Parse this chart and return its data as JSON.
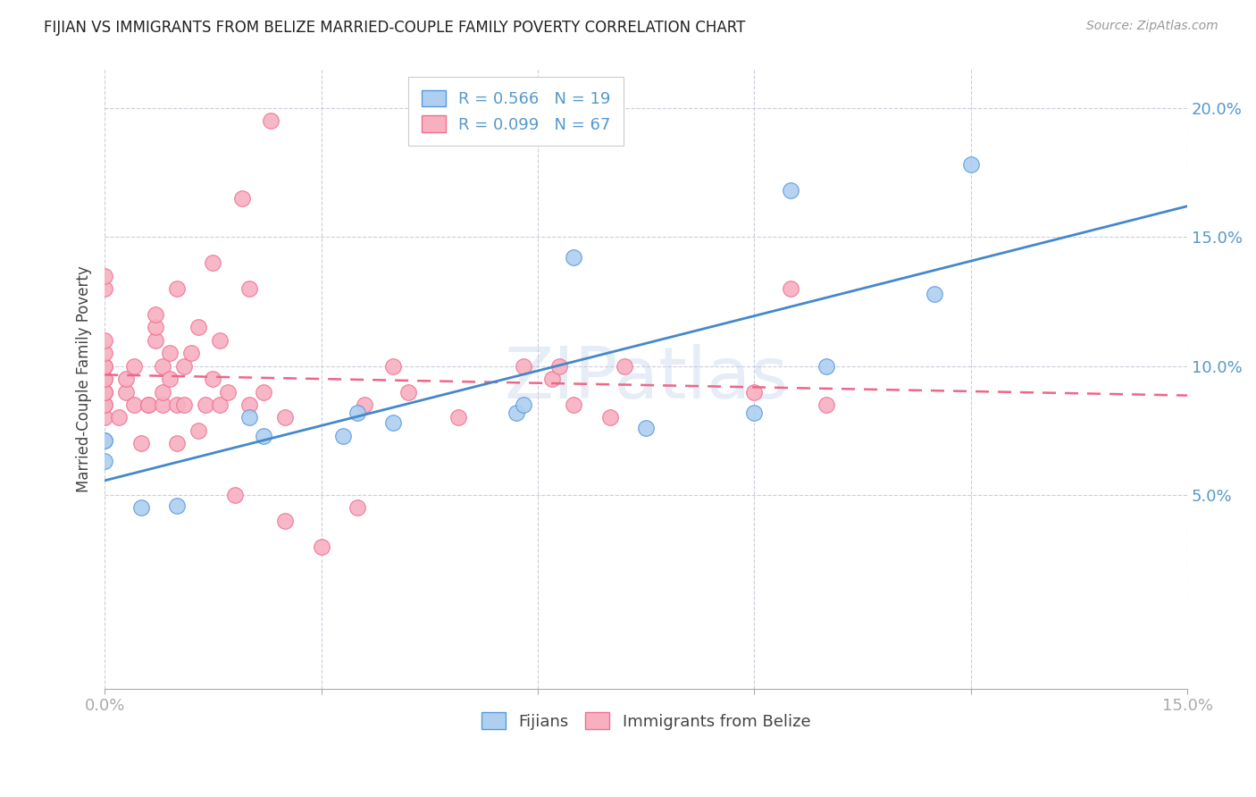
{
  "title": "FIJIAN VS IMMIGRANTS FROM BELIZE MARRIED-COUPLE FAMILY POVERTY CORRELATION CHART",
  "source": "Source: ZipAtlas.com",
  "ylabel": "Married-Couple Family Poverty",
  "fijian_R": 0.566,
  "fijian_N": 19,
  "belize_R": 0.099,
  "belize_N": 67,
  "fijian_color": "#aecff0",
  "belize_color": "#f8b0c0",
  "fijian_edge_color": "#5599dd",
  "belize_edge_color": "#ee7090",
  "fijian_line_color": "#4488cc",
  "belize_line_color": "#ee6688",
  "watermark": "ZIPatlas",
  "xlim": [
    0.0,
    0.15
  ],
  "ylim": [
    -0.025,
    0.215
  ],
  "yticks": [
    0.05,
    0.1,
    0.15,
    0.2
  ],
  "yticklabels": [
    "5.0%",
    "10.0%",
    "15.0%",
    "20.0%"
  ],
  "fijian_x": [
    0.0,
    0.0,
    0.0,
    0.005,
    0.01,
    0.02,
    0.022,
    0.033,
    0.035,
    0.04,
    0.057,
    0.058,
    0.065,
    0.075,
    0.09,
    0.095,
    0.1,
    0.115,
    0.12
  ],
  "fijian_y": [
    0.063,
    0.071,
    0.071,
    0.045,
    0.046,
    0.08,
    0.073,
    0.073,
    0.082,
    0.078,
    0.082,
    0.085,
    0.142,
    0.076,
    0.082,
    0.168,
    0.1,
    0.128,
    0.178
  ],
  "belize_x": [
    0.0,
    0.0,
    0.0,
    0.0,
    0.0,
    0.0,
    0.0,
    0.0,
    0.0,
    0.0,
    0.0,
    0.0,
    0.0,
    0.0,
    0.002,
    0.003,
    0.003,
    0.004,
    0.004,
    0.005,
    0.006,
    0.006,
    0.007,
    0.007,
    0.007,
    0.008,
    0.008,
    0.008,
    0.009,
    0.009,
    0.01,
    0.01,
    0.01,
    0.011,
    0.011,
    0.012,
    0.013,
    0.013,
    0.014,
    0.015,
    0.015,
    0.016,
    0.016,
    0.017,
    0.018,
    0.019,
    0.02,
    0.02,
    0.022,
    0.023,
    0.025,
    0.025,
    0.03,
    0.035,
    0.036,
    0.04,
    0.042,
    0.049,
    0.058,
    0.062,
    0.063,
    0.065,
    0.07,
    0.072,
    0.09,
    0.095,
    0.1
  ],
  "belize_y": [
    0.08,
    0.085,
    0.085,
    0.09,
    0.09,
    0.09,
    0.095,
    0.095,
    0.1,
    0.1,
    0.105,
    0.11,
    0.13,
    0.135,
    0.08,
    0.09,
    0.095,
    0.085,
    0.1,
    0.07,
    0.085,
    0.085,
    0.11,
    0.115,
    0.12,
    0.085,
    0.09,
    0.1,
    0.095,
    0.105,
    0.07,
    0.085,
    0.13,
    0.085,
    0.1,
    0.105,
    0.075,
    0.115,
    0.085,
    0.095,
    0.14,
    0.085,
    0.11,
    0.09,
    0.05,
    0.165,
    0.085,
    0.13,
    0.09,
    0.195,
    0.04,
    0.08,
    0.03,
    0.045,
    0.085,
    0.1,
    0.09,
    0.08,
    0.1,
    0.095,
    0.1,
    0.085,
    0.08,
    0.1,
    0.09,
    0.13,
    0.085
  ]
}
